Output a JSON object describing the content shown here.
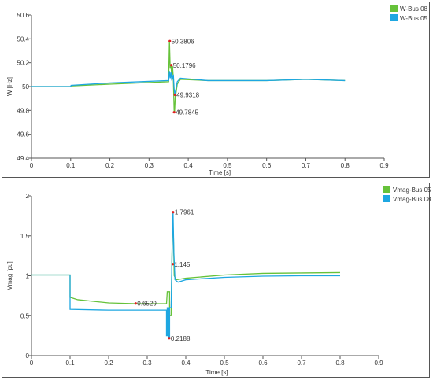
{
  "chart_data": [
    {
      "type": "line",
      "xlabel": "Time [s]",
      "ylabel": "W [Hz]",
      "xlim": [
        0,
        0.9
      ],
      "ylim": [
        49.4,
        50.6
      ],
      "xticks": [
        0,
        0.1,
        0.2,
        0.3,
        0.4,
        0.5,
        0.6,
        0.7,
        0.8,
        0.9
      ],
      "yticks": [
        49.4,
        49.6,
        49.8,
        50,
        50.2,
        50.4,
        50.6
      ],
      "grid": false,
      "legend_position": "top-right",
      "series": [
        {
          "name": "W-Bus 08",
          "color": "#66c23a",
          "points": [
            [
              0,
              50
            ],
            [
              0.1,
              50
            ],
            [
              0.101,
              50.005
            ],
            [
              0.2,
              50.02
            ],
            [
              0.35,
              50.04
            ],
            [
              0.352,
              50.38
            ],
            [
              0.354,
              50.15
            ],
            [
              0.356,
              50.18
            ],
            [
              0.358,
              50.08
            ],
            [
              0.36,
              50.17
            ],
            [
              0.362,
              50.06
            ],
            [
              0.364,
              49.8
            ],
            [
              0.365,
              49.78
            ],
            [
              0.367,
              49.92
            ],
            [
              0.369,
              49.95
            ],
            [
              0.372,
              50.02
            ],
            [
              0.38,
              50.06
            ],
            [
              0.45,
              50.05
            ],
            [
              0.6,
              50.05
            ],
            [
              0.7,
              50.06
            ],
            [
              0.8,
              50.05
            ]
          ]
        },
        {
          "name": "W-Bus 05",
          "color": "#1ea7e1",
          "points": [
            [
              0,
              50
            ],
            [
              0.1,
              50
            ],
            [
              0.101,
              50.01
            ],
            [
              0.2,
              50.03
            ],
            [
              0.35,
              50.05
            ],
            [
              0.352,
              50.13
            ],
            [
              0.354,
              50.07
            ],
            [
              0.356,
              50.12
            ],
            [
              0.358,
              50.05
            ],
            [
              0.362,
              50.1
            ],
            [
              0.364,
              49.98
            ],
            [
              0.366,
              49.93
            ],
            [
              0.368,
              49.97
            ],
            [
              0.372,
              50.04
            ],
            [
              0.38,
              50.07
            ],
            [
              0.45,
              50.05
            ],
            [
              0.6,
              50.05
            ],
            [
              0.7,
              50.06
            ],
            [
              0.8,
              50.05
            ]
          ]
        }
      ],
      "annotations": [
        {
          "label": "50.3806",
          "x": 0.353,
          "y": 50.3806
        },
        {
          "label": "50.1796",
          "x": 0.357,
          "y": 50.1796
        },
        {
          "label": "49.9318",
          "x": 0.366,
          "y": 49.9318
        },
        {
          "label": "49.7845",
          "x": 0.364,
          "y": 49.7845
        }
      ]
    },
    {
      "type": "line",
      "xlabel": "Time [s]",
      "ylabel": "Vmag [pu]",
      "xlim": [
        0,
        0.9
      ],
      "ylim": [
        0,
        2
      ],
      "xticks": [
        0,
        0.1,
        0.2,
        0.3,
        0.4,
        0.5,
        0.6,
        0.7,
        0.8,
        0.9
      ],
      "yticks": [
        0,
        0.5,
        1,
        1.5,
        2
      ],
      "grid": false,
      "legend_position": "top-right",
      "series": [
        {
          "name": "Vmag-Bus 05",
          "color": "#66c23a",
          "points": [
            [
              0,
              1.01
            ],
            [
              0.1,
              1.01
            ],
            [
              0.1,
              0.73
            ],
            [
              0.12,
              0.7
            ],
            [
              0.2,
              0.66
            ],
            [
              0.27,
              0.65
            ],
            [
              0.35,
              0.65
            ],
            [
              0.352,
              0.8
            ],
            [
              0.358,
              0.8
            ],
            [
              0.358,
              0.5
            ],
            [
              0.362,
              0.5
            ],
            [
              0.364,
              1.2
            ],
            [
              0.366,
              1.72
            ],
            [
              0.368,
              1.5
            ],
            [
              0.37,
              1.0
            ],
            [
              0.375,
              0.95
            ],
            [
              0.4,
              0.97
            ],
            [
              0.5,
              1.01
            ],
            [
              0.6,
              1.03
            ],
            [
              0.7,
              1.035
            ],
            [
              0.8,
              1.04
            ]
          ]
        },
        {
          "name": "Vmag-Bus 08",
          "color": "#1ea7e1",
          "points": [
            [
              0,
              1.01
            ],
            [
              0.1,
              1.01
            ],
            [
              0.1,
              0.58
            ],
            [
              0.2,
              0.57
            ],
            [
              0.3,
              0.57
            ],
            [
              0.35,
              0.57
            ],
            [
              0.35,
              0.25
            ],
            [
              0.352,
              0.25
            ],
            [
              0.352,
              0.6
            ],
            [
              0.356,
              0.6
            ],
            [
              0.356,
              0.22
            ],
            [
              0.358,
              0.22
            ],
            [
              0.358,
              0.6
            ],
            [
              0.362,
              0.6
            ],
            [
              0.364,
              1.15
            ],
            [
              0.366,
              1.7
            ],
            [
              0.367,
              1.796
            ],
            [
              0.369,
              1.3
            ],
            [
              0.372,
              0.95
            ],
            [
              0.38,
              0.92
            ],
            [
              0.4,
              0.95
            ],
            [
              0.5,
              0.98
            ],
            [
              0.6,
              0.995
            ],
            [
              0.7,
              1.0
            ],
            [
              0.8,
              1.0
            ]
          ]
        }
      ],
      "annotations": [
        {
          "label": "1.7961",
          "x": 0.367,
          "y": 1.7961
        },
        {
          "label": "1.145",
          "x": 0.366,
          "y": 1.145
        },
        {
          "label": "0.6529",
          "x": 0.27,
          "y": 0.6529
        },
        {
          "label": "0.2188",
          "x": 0.357,
          "y": 0.2188
        }
      ]
    }
  ]
}
